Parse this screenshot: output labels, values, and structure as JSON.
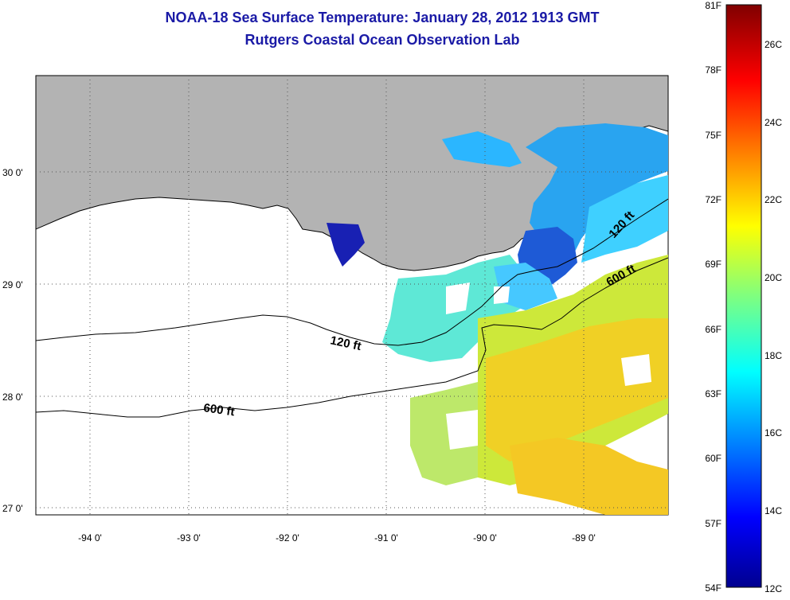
{
  "title_line1": "NOAA-18 Sea Surface Temperature:  January 28, 2012 1913 GMT",
  "title_line2": "Rutgers Coastal Ocean Observation Lab",
  "map": {
    "lat_labels": [
      "30 0'",
      "29 0'",
      "28 0'",
      "27 0'"
    ],
    "lon_labels": [
      "-94 0'",
      "-93 0'",
      "-92 0'",
      "-91 0'",
      "-90 0'",
      "-89 0'"
    ],
    "contour_labels": [
      "120 ft",
      "600 ft",
      "120 ft",
      "600 ft"
    ],
    "land_color": "#b3b3b3",
    "nodata_color": "#ffffff"
  },
  "colorbar": {
    "f_labels": [
      "81F",
      "78F",
      "75F",
      "72F",
      "69F",
      "66F",
      "63F",
      "60F",
      "57F",
      "54F"
    ],
    "c_labels": [
      "26C",
      "24C",
      "22C",
      "20C",
      "18C",
      "16C",
      "14C",
      "12C"
    ],
    "colormap": "jet"
  }
}
